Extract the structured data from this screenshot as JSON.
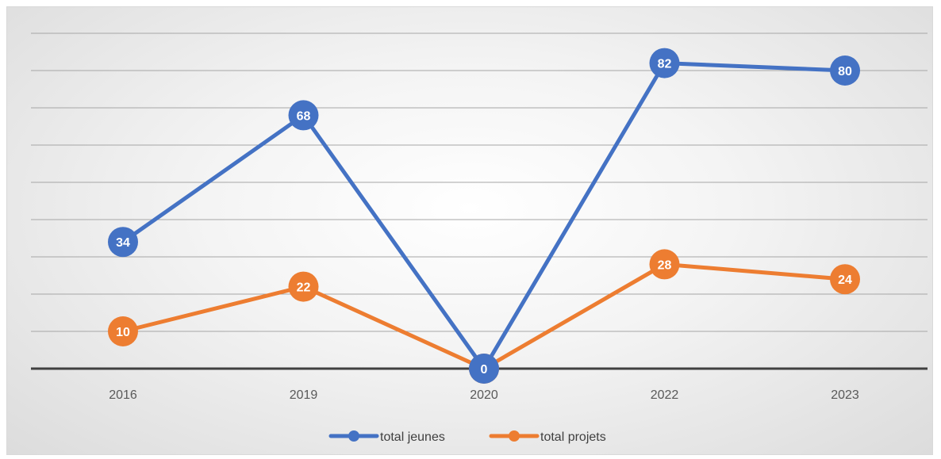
{
  "chart_data": {
    "type": "line",
    "categories": [
      "2016",
      "2019",
      "2020",
      "2022",
      "2023"
    ],
    "series": [
      {
        "name": "total jeunes",
        "values": [
          34,
          68,
          0,
          82,
          80
        ],
        "color": "#4472C4"
      },
      {
        "name": "total projets",
        "values": [
          10,
          22,
          0,
          28,
          24
        ],
        "color": "#ED7D31"
      }
    ],
    "ylim": [
      0,
      90
    ],
    "y_gridlines": [
      10,
      20,
      30,
      40,
      50,
      60,
      70,
      80,
      90
    ],
    "grid": true,
    "y_axis_labels_visible": false,
    "data_labels": true,
    "legend_position": "bottom",
    "title": "",
    "xlabel": "",
    "ylabel": ""
  }
}
